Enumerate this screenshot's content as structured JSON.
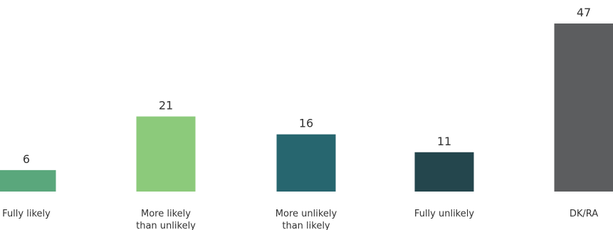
{
  "chart_data": {
    "type": "bar",
    "categories": [
      [
        "Fully likely"
      ],
      [
        "More likely",
        "than unlikely"
      ],
      [
        "More unlikely",
        "than likely"
      ],
      [
        "Fully unlikely"
      ],
      [
        "DK/RA"
      ]
    ],
    "values": [
      6,
      21,
      16,
      11,
      47
    ],
    "colors": [
      "#5aa77c",
      "#8cca7b",
      "#27666f",
      "#24464d",
      "#5c5d5f"
    ],
    "ylim": [
      0,
      47
    ],
    "grid": false,
    "legend": "none",
    "data_labels": true
  }
}
